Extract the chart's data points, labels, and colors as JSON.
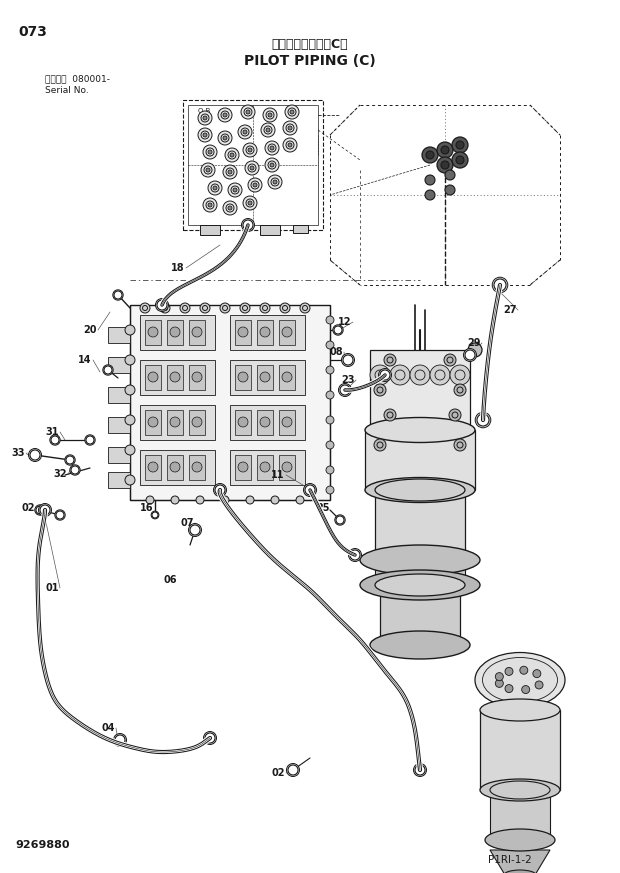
{
  "title_japanese": "パイロット配管（C）",
  "title_english": "PILOT PIPING (C)",
  "page_number": "073",
  "serial_label": "適用号機  080001-",
  "serial_sub": "Serial No.",
  "drawing_number": "9269880",
  "ref_number": "P1RI-1-2",
  "bg": "#ffffff",
  "lc": "#1a1a1a"
}
